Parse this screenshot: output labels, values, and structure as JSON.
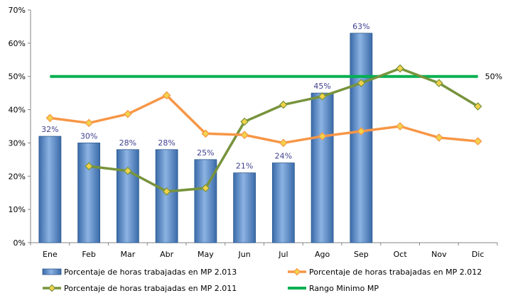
{
  "chart_data": {
    "type": "bar",
    "categories": [
      "Ene",
      "Feb",
      "Mar",
      "Abr",
      "May",
      "Jun",
      "Jul",
      "Ago",
      "Sep",
      "Oct",
      "Nov",
      "Dic"
    ],
    "ylim": [
      0,
      70
    ],
    "yticks": [
      0,
      10,
      20,
      30,
      40,
      50,
      60,
      70
    ],
    "ytick_labels": [
      "0%",
      "10%",
      "20%",
      "30%",
      "40%",
      "50%",
      "60%",
      "70%"
    ],
    "series": [
      {
        "name": "Porcentaje de horas trabajadas en MP 2.013",
        "type": "bar",
        "color": "#4f81bd",
        "values": [
          32,
          30,
          28,
          28,
          25,
          21,
          24,
          45,
          63,
          null,
          null,
          null
        ],
        "labels": [
          "32%",
          "30%",
          "28%",
          "28%",
          "25%",
          "21%",
          "24%",
          "45%",
          "63%",
          "",
          "",
          ""
        ]
      },
      {
        "name": "Porcentaje de horas trabajadas en MP 2.012",
        "type": "line",
        "color": "#f79646",
        "values": [
          37.5,
          36,
          38.7,
          44.3,
          32.8,
          32.4,
          30,
          32,
          33.5,
          35,
          31.6,
          30.5
        ]
      },
      {
        "name": "Porcentaje de horas trabajadas en MP 2.011",
        "type": "line",
        "color": "#77933c",
        "values": [
          null,
          23,
          21.6,
          15.4,
          16.4,
          36.4,
          41.5,
          44,
          48,
          52.4,
          48,
          41
        ]
      },
      {
        "name": "Rango Minimo MP",
        "type": "reference",
        "color": "#00b050",
        "value": 50,
        "label": "50%"
      }
    ],
    "legend_position": "bottom",
    "grid": false
  }
}
